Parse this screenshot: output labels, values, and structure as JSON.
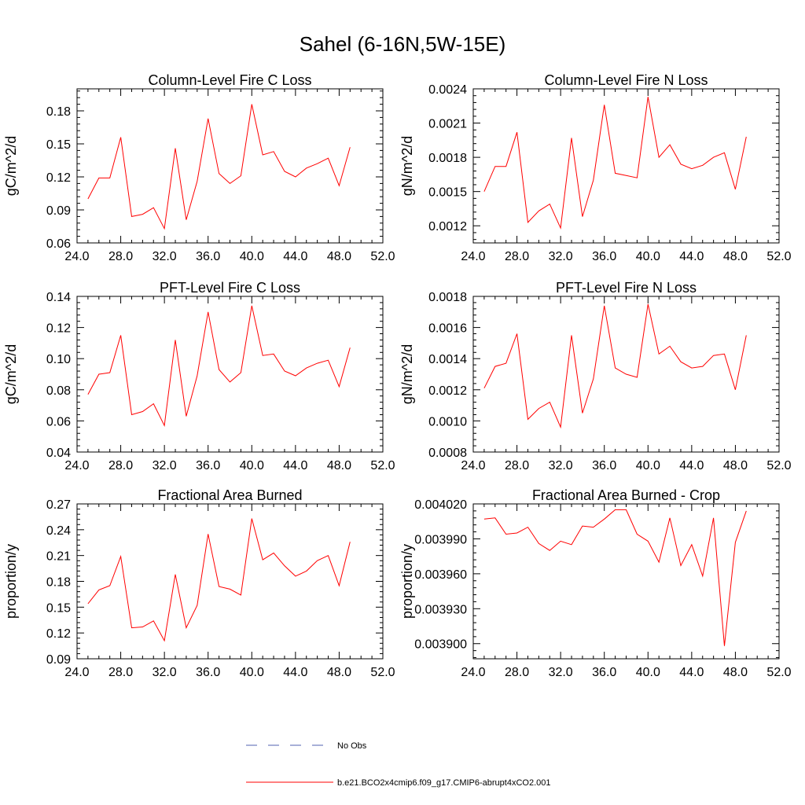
{
  "figure": {
    "title": "Sahel (6-16N,5W-15E)"
  },
  "colors": {
    "model_line": "#ff0000",
    "obs_line": "#5060b0",
    "axis": "#000000"
  },
  "legend": {
    "items": [
      {
        "label": "No Obs",
        "style": "dashed",
        "color": "#5060b0"
      },
      {
        "label": "b.e21.BCO2x4cmip6.f09_g17.CMIP6-abrupt4xCO2.001",
        "style": "solid",
        "color": "#ff0000"
      }
    ]
  },
  "chart_data": [
    {
      "type": "line",
      "title": "Column-Level Fire C Loss",
      "xlabel": "",
      "ylabel": "gC/m^2/d",
      "xlim": [
        24,
        52
      ],
      "ylim": [
        0.06,
        0.2
      ],
      "xticks": [
        "24.0",
        "28.0",
        "32.0",
        "36.0",
        "40.0",
        "44.0",
        "48.0",
        "52.0"
      ],
      "yticks": [
        "0.06",
        "0.09",
        "0.12",
        "0.15",
        "0.18"
      ],
      "x": [
        25,
        26,
        27,
        28,
        29,
        30,
        31,
        32,
        33,
        34,
        35,
        36,
        37,
        38,
        39,
        40,
        41,
        42,
        43,
        44,
        45,
        46,
        47,
        48,
        49
      ],
      "series": [
        {
          "name": "b.e21.BCO2x4cmip6.f09_g17.CMIP6-abrupt4xCO2.001",
          "values": [
            0.1,
            0.119,
            0.119,
            0.156,
            0.084,
            0.086,
            0.092,
            0.073,
            0.146,
            0.081,
            0.116,
            0.173,
            0.123,
            0.114,
            0.121,
            0.186,
            0.14,
            0.143,
            0.125,
            0.12,
            0.128,
            0.132,
            0.137,
            0.112,
            0.147
          ]
        }
      ]
    },
    {
      "type": "line",
      "title": "Column-Level Fire N Loss",
      "xlabel": "",
      "ylabel": "gN/m^2/d",
      "xlim": [
        24,
        52
      ],
      "ylim": [
        0.00105,
        0.0024
      ],
      "xticks": [
        "24.0",
        "28.0",
        "32.0",
        "36.0",
        "40.0",
        "44.0",
        "48.0",
        "52.0"
      ],
      "yticks": [
        "0.0012",
        "0.0015",
        "0.0018",
        "0.0021",
        "0.0024"
      ],
      "x": [
        25,
        26,
        27,
        28,
        29,
        30,
        31,
        32,
        33,
        34,
        35,
        36,
        37,
        38,
        39,
        40,
        41,
        42,
        43,
        44,
        45,
        46,
        47,
        48,
        49
      ],
      "series": [
        {
          "name": "b.e21.BCO2x4cmip6.f09_g17.CMIP6-abrupt4xCO2.001",
          "values": [
            0.0015,
            0.00172,
            0.00172,
            0.00202,
            0.00123,
            0.00133,
            0.00139,
            0.00118,
            0.00197,
            0.00128,
            0.0016,
            0.00226,
            0.00166,
            0.00164,
            0.00162,
            0.00233,
            0.0018,
            0.00191,
            0.00174,
            0.0017,
            0.00173,
            0.0018,
            0.00184,
            0.00152,
            0.00198
          ]
        }
      ]
    },
    {
      "type": "line",
      "title": "PFT-Level Fire C Loss",
      "xlabel": "",
      "ylabel": "gC/m^2/d",
      "xlim": [
        24,
        52
      ],
      "ylim": [
        0.04,
        0.14
      ],
      "xticks": [
        "24.0",
        "28.0",
        "32.0",
        "36.0",
        "40.0",
        "44.0",
        "48.0",
        "52.0"
      ],
      "yticks": [
        "0.04",
        "0.06",
        "0.08",
        "0.10",
        "0.12",
        "0.14"
      ],
      "x": [
        25,
        26,
        27,
        28,
        29,
        30,
        31,
        32,
        33,
        34,
        35,
        36,
        37,
        38,
        39,
        40,
        41,
        42,
        43,
        44,
        45,
        46,
        47,
        48,
        49
      ],
      "series": [
        {
          "name": "b.e21.BCO2x4cmip6.f09_g17.CMIP6-abrupt4xCO2.001",
          "values": [
            0.077,
            0.09,
            0.091,
            0.115,
            0.064,
            0.066,
            0.071,
            0.057,
            0.112,
            0.063,
            0.089,
            0.13,
            0.093,
            0.085,
            0.091,
            0.134,
            0.102,
            0.103,
            0.092,
            0.089,
            0.094,
            0.097,
            0.099,
            0.082,
            0.107
          ]
        }
      ]
    },
    {
      "type": "line",
      "title": "PFT-Level Fire N Loss",
      "xlabel": "",
      "ylabel": "gN/m^2/d",
      "xlim": [
        24,
        52
      ],
      "ylim": [
        0.0008,
        0.0018
      ],
      "xticks": [
        "24.0",
        "28.0",
        "32.0",
        "36.0",
        "40.0",
        "44.0",
        "48.0",
        "52.0"
      ],
      "yticks": [
        "0.0008",
        "0.0010",
        "0.0012",
        "0.0014",
        "0.0016",
        "0.0018"
      ],
      "x": [
        25,
        26,
        27,
        28,
        29,
        30,
        31,
        32,
        33,
        34,
        35,
        36,
        37,
        38,
        39,
        40,
        41,
        42,
        43,
        44,
        45,
        46,
        47,
        48,
        49
      ],
      "series": [
        {
          "name": "b.e21.BCO2x4cmip6.f09_g17.CMIP6-abrupt4xCO2.001",
          "values": [
            0.00121,
            0.00135,
            0.00137,
            0.00156,
            0.00101,
            0.00108,
            0.00112,
            0.00096,
            0.00155,
            0.00105,
            0.00127,
            0.00174,
            0.00134,
            0.0013,
            0.00128,
            0.00175,
            0.00143,
            0.00148,
            0.00138,
            0.00134,
            0.00135,
            0.00142,
            0.00143,
            0.0012,
            0.00155
          ]
        }
      ]
    },
    {
      "type": "line",
      "title": "Fractional Area Burned",
      "xlabel": "",
      "ylabel": "proportion/y",
      "xlim": [
        24,
        52
      ],
      "ylim": [
        0.09,
        0.27
      ],
      "xticks": [
        "24.0",
        "28.0",
        "32.0",
        "36.0",
        "40.0",
        "44.0",
        "48.0",
        "52.0"
      ],
      "yticks": [
        "0.09",
        "0.12",
        "0.15",
        "0.18",
        "0.21",
        "0.24",
        "0.27"
      ],
      "x": [
        25,
        26,
        27,
        28,
        29,
        30,
        31,
        32,
        33,
        34,
        35,
        36,
        37,
        38,
        39,
        40,
        41,
        42,
        43,
        44,
        45,
        46,
        47,
        48,
        49
      ],
      "series": [
        {
          "name": "b.e21.BCO2x4cmip6.f09_g17.CMIP6-abrupt4xCO2.001",
          "values": [
            0.154,
            0.17,
            0.175,
            0.209,
            0.126,
            0.127,
            0.134,
            0.111,
            0.188,
            0.126,
            0.152,
            0.235,
            0.174,
            0.171,
            0.164,
            0.253,
            0.205,
            0.213,
            0.198,
            0.186,
            0.192,
            0.204,
            0.21,
            0.175,
            0.226
          ]
        }
      ]
    },
    {
      "type": "line",
      "title": "Fractional Area Burned - Crop",
      "xlabel": "",
      "ylabel": "proportion/y",
      "xlim": [
        24,
        52
      ],
      "ylim": [
        0.003887,
        0.00402
      ],
      "xticks": [
        "24.0",
        "28.0",
        "32.0",
        "36.0",
        "40.0",
        "44.0",
        "48.0",
        "52.0"
      ],
      "yticks": [
        "0.003900",
        "0.003930",
        "0.003960",
        "0.003990",
        "0.004020"
      ],
      "x": [
        25,
        26,
        27,
        28,
        29,
        30,
        31,
        32,
        33,
        34,
        35,
        36,
        37,
        38,
        39,
        40,
        41,
        42,
        43,
        44,
        45,
        46,
        47,
        48,
        49
      ],
      "series": [
        {
          "name": "b.e21.BCO2x4cmip6.f09_g17.CMIP6-abrupt4xCO2.001",
          "values": [
            0.004007,
            0.004008,
            0.003994,
            0.003995,
            0.004,
            0.003986,
            0.00398,
            0.003988,
            0.003985,
            0.004001,
            0.004,
            0.004007,
            0.004015,
            0.004015,
            0.003994,
            0.003988,
            0.00397,
            0.004008,
            0.003967,
            0.003985,
            0.003958,
            0.004008,
            0.003898,
            0.003987,
            0.004014
          ]
        }
      ]
    }
  ]
}
